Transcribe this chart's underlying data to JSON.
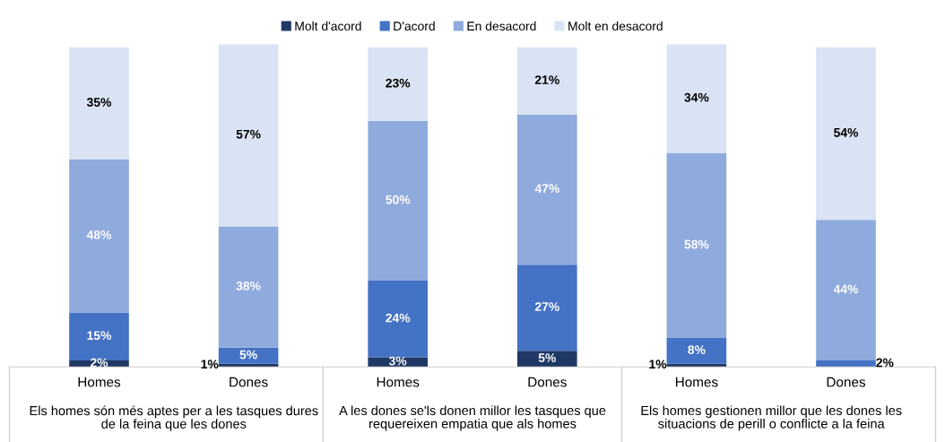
{
  "chart_data": {
    "type": "bar",
    "stacked": true,
    "legend": "top",
    "grid": false,
    "tick_labels": "x",
    "categories": [
      "Homes",
      "Dones",
      "Homes",
      "Dones",
      "Homes",
      "Dones"
    ],
    "series": [
      {
        "name": "Molt d'acord",
        "color": "#1f3864",
        "values": [
          2,
          1,
          3,
          5,
          1,
          null
        ],
        "value_labels": [
          "2%",
          "1%",
          "3%",
          "5%",
          "1%",
          null
        ]
      },
      {
        "name": "D'acord",
        "color": "#4472c4",
        "values": [
          15,
          5,
          24,
          27,
          8,
          2
        ],
        "value_labels": [
          "15%",
          "5%",
          "24%",
          "27%",
          "8%",
          "2%"
        ]
      },
      {
        "name": "En desacord",
        "color": "#8faadc",
        "values": [
          48,
          38,
          50,
          47,
          58,
          44
        ],
        "value_labels": [
          "48%",
          "38%",
          "50%",
          "47%",
          "58%",
          "44%"
        ]
      },
      {
        "name": "Molt en desacord",
        "color": "#dae3f3",
        "values": [
          35,
          57,
          23,
          21,
          34,
          54
        ],
        "value_labels": [
          "35%",
          "57%",
          "23%",
          "21%",
          "34%",
          "54%"
        ]
      }
    ],
    "annotations": [
      "Els homes són més aptes per a les tasques dures\nde la feina que les dones",
      "A les dones se'ls donen millor les tasques que\nrequereixen empatia que als homes",
      "Els homes gestionen millor que les dones les\nsituacions de perill o conflicte a la feina"
    ]
  }
}
